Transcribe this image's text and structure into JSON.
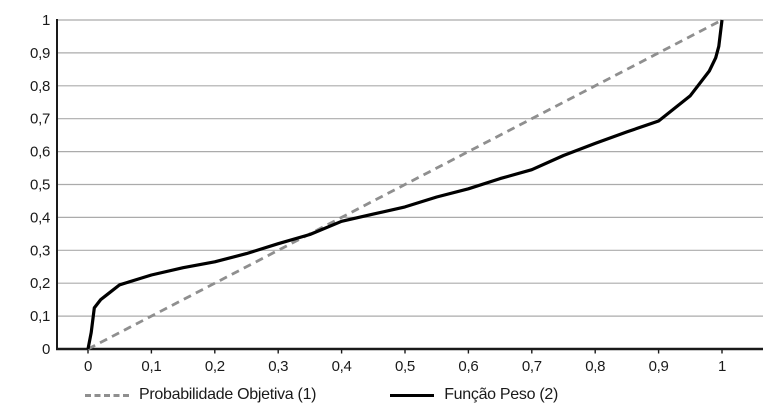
{
  "chart_data": {
    "type": "line",
    "title": "",
    "xlabel": "",
    "ylabel": "",
    "xlim": [
      0,
      1
    ],
    "ylim": [
      0,
      1
    ],
    "grid": "horizontal",
    "decimal_separator": ",",
    "legend_position": "bottom",
    "x_ticks": {
      "values": [
        0,
        0.1,
        0.2,
        0.3,
        0.4,
        0.5,
        0.6,
        0.7,
        0.8,
        0.9,
        1
      ],
      "labels": [
        "0",
        "0,1",
        "0,2",
        "0,3",
        "0,4",
        "0,5",
        "0,6",
        "0,7",
        "0,8",
        "0,9",
        "1"
      ]
    },
    "y_ticks": {
      "values": [
        0,
        0.1,
        0.2,
        0.3,
        0.4,
        0.5,
        0.6,
        0.7,
        0.8,
        0.9,
        1
      ],
      "labels": [
        "0",
        "0,1",
        "0,2",
        "0,3",
        "0,4",
        "0,5",
        "0,6",
        "0,7",
        "0,8",
        "0,9",
        "1"
      ]
    },
    "series": [
      {
        "name": "Probabilidade Objetiva (1)",
        "line_style": "dashed",
        "color": "#8f8f8f",
        "points": [
          [
            0,
            0
          ],
          [
            1,
            1
          ]
        ]
      },
      {
        "name": "Função Peso (2)",
        "line_style": "solid",
        "color": "#000000",
        "points": [
          [
            0,
            0
          ],
          [
            0.005,
            0.05
          ],
          [
            0.01,
            0.125
          ],
          [
            0.02,
            0.15
          ],
          [
            0.03,
            0.165
          ],
          [
            0.05,
            0.195
          ],
          [
            0.075,
            0.21
          ],
          [
            0.1,
            0.225
          ],
          [
            0.15,
            0.247
          ],
          [
            0.2,
            0.265
          ],
          [
            0.25,
            0.29
          ],
          [
            0.3,
            0.32
          ],
          [
            0.35,
            0.348
          ],
          [
            0.4,
            0.388
          ],
          [
            0.45,
            0.41
          ],
          [
            0.5,
            0.432
          ],
          [
            0.55,
            0.462
          ],
          [
            0.6,
            0.487
          ],
          [
            0.65,
            0.518
          ],
          [
            0.7,
            0.545
          ],
          [
            0.75,
            0.588
          ],
          [
            0.8,
            0.625
          ],
          [
            0.85,
            0.66
          ],
          [
            0.9,
            0.693
          ],
          [
            0.95,
            0.77
          ],
          [
            0.98,
            0.845
          ],
          [
            0.99,
            0.885
          ],
          [
            0.995,
            0.92
          ],
          [
            1,
            1
          ]
        ]
      }
    ]
  },
  "colors": {
    "background": "#ffffff",
    "grid": "#ababab",
    "axis": "#1a1a1a",
    "text": "#1a1a1a",
    "dashed_line": "#8f8f8f",
    "solid_line": "#000000"
  }
}
